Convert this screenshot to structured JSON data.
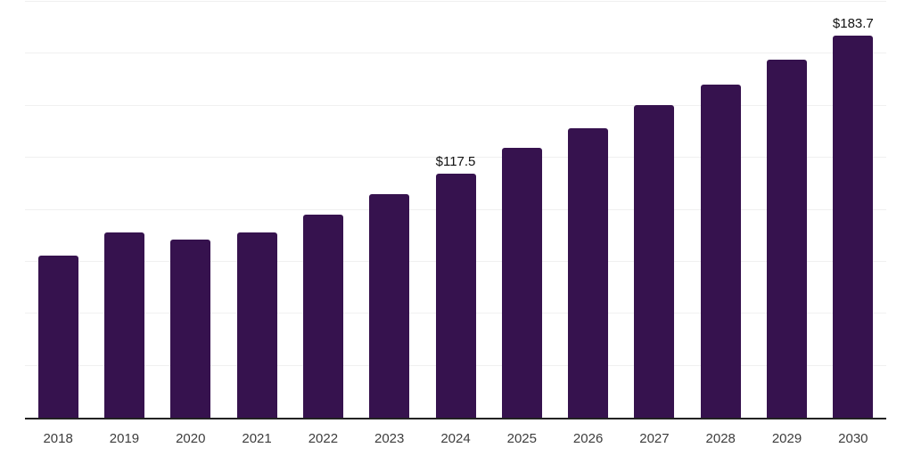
{
  "chart_data": {
    "type": "bar",
    "title": "",
    "xlabel": "",
    "ylabel": "",
    "categories": [
      "2018",
      "2019",
      "2020",
      "2021",
      "2022",
      "2023",
      "2024",
      "2025",
      "2026",
      "2027",
      "2028",
      "2029",
      "2030"
    ],
    "values": [
      77.9,
      88.9,
      85.7,
      89.2,
      97.8,
      107.7,
      117.5,
      129.7,
      139.3,
      150.2,
      160.1,
      172.1,
      183.7
    ],
    "point_labels": [
      "",
      "",
      "",
      "",
      "",
      "",
      "$117.5",
      "",
      "",
      "",
      "",
      "",
      "$183.7"
    ],
    "ylim": [
      0,
      200
    ],
    "gridline_step": 25,
    "grid": true,
    "legend": false,
    "y_tick_labels_visible": false,
    "bar_color": "#36124e",
    "gridline_color": "#f0f0f0",
    "axis_line_color": "#222222",
    "x_tick_label_color": "#3d3d3d",
    "data_label_color": "#111111"
  }
}
